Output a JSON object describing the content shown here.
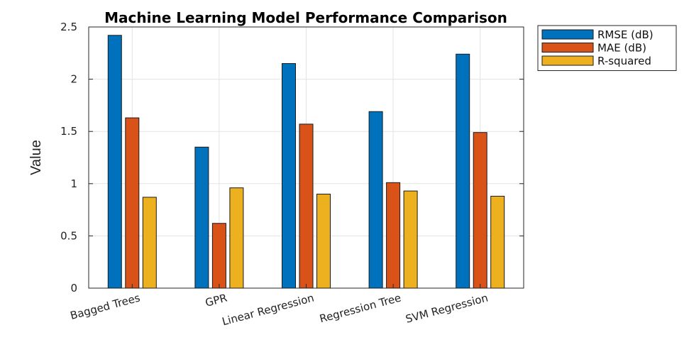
{
  "chart_data": {
    "type": "bar",
    "title": "Machine Learning Model Performance Comparison",
    "xlabel": "",
    "ylabel": "Value",
    "ylim": [
      0,
      2.5
    ],
    "yticks": [
      0,
      0.5,
      1,
      1.5,
      2,
      2.5
    ],
    "ytick_labels": [
      "0",
      "0.5",
      "1",
      "1.5",
      "2",
      "2.5"
    ],
    "grid": true,
    "legend_position": "top-right-outside",
    "categories": [
      "Bagged Trees",
      "GPR",
      "Linear Regression",
      "Regression Tree",
      "SVM Regression"
    ],
    "series": [
      {
        "name": "RMSE (dB)",
        "color": "#0072BD",
        "values": [
          2.42,
          1.35,
          2.15,
          1.69,
          2.24
        ]
      },
      {
        "name": "MAE (dB)",
        "color": "#D95319",
        "values": [
          1.63,
          0.62,
          1.57,
          1.01,
          1.49
        ]
      },
      {
        "name": "R-squared",
        "color": "#EDB120",
        "values": [
          0.87,
          0.96,
          0.9,
          0.93,
          0.88
        ]
      }
    ]
  }
}
